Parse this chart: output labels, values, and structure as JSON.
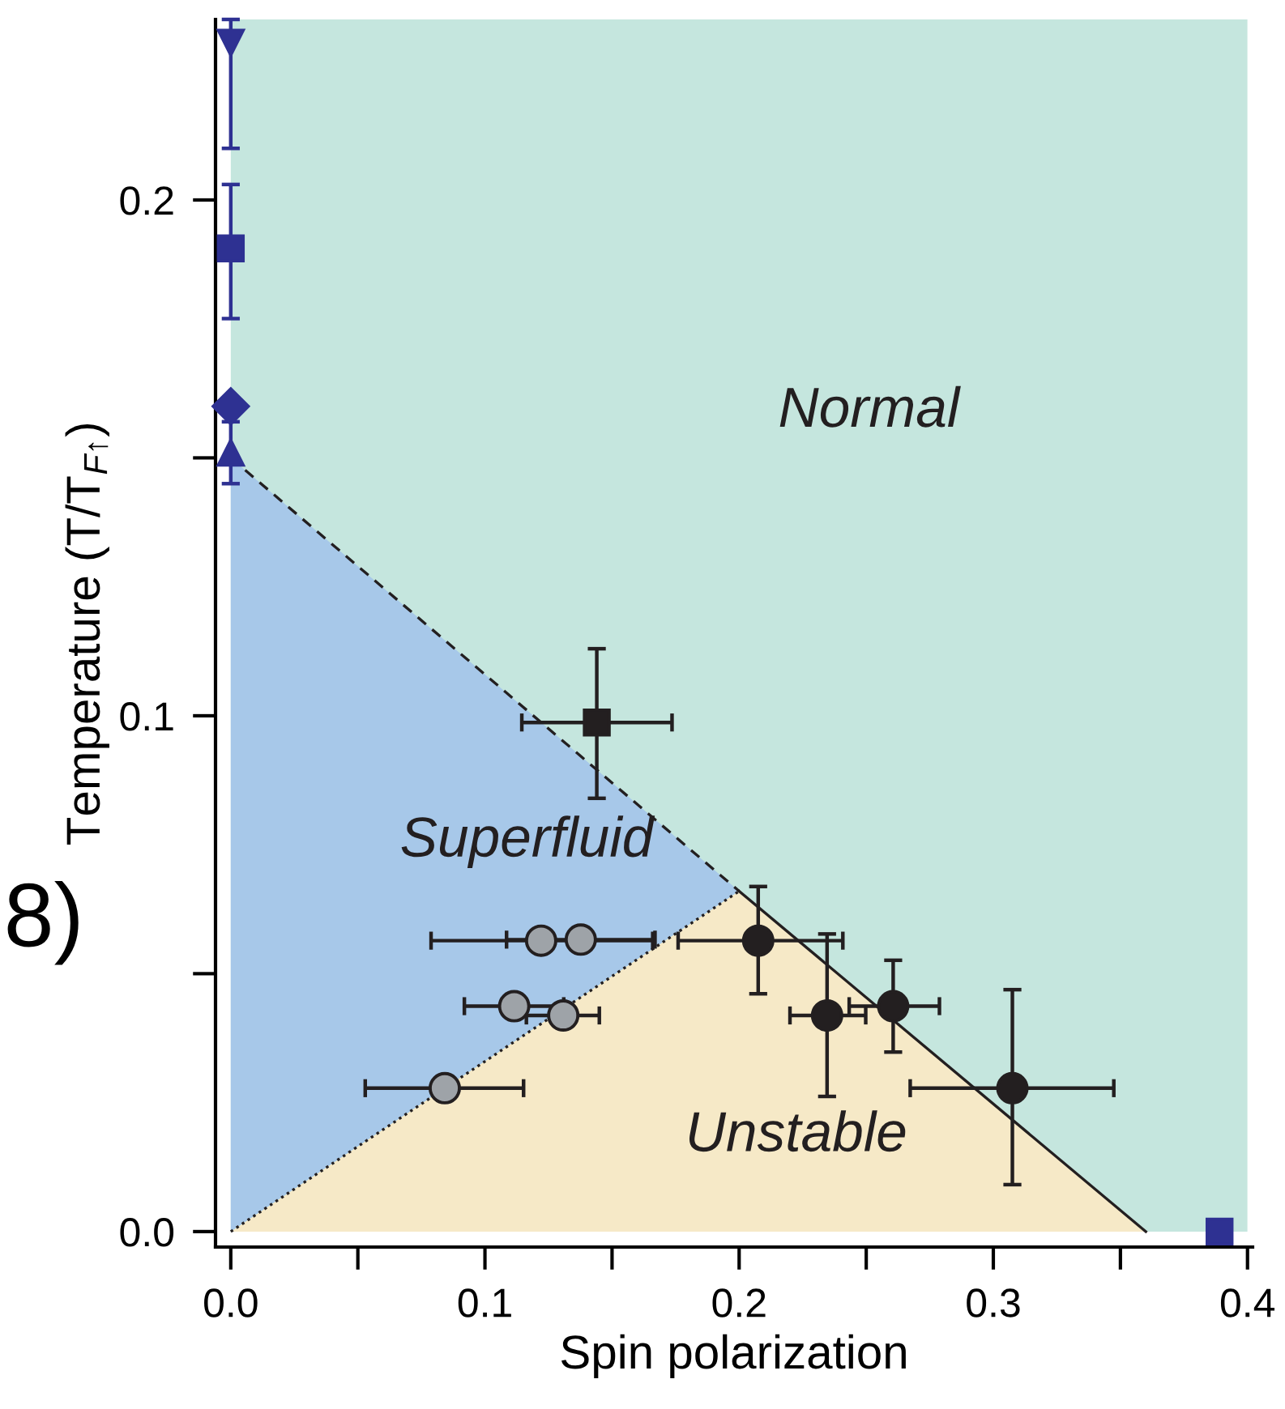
{
  "chart_data": {
    "type": "scatter",
    "xlabel": "Spin polarization",
    "ylabel": "Temperature (T/T$_{F↑}$)",
    "xlim": [
      -0.006,
      0.402
    ],
    "ylim": [
      -0.003,
      0.235
    ],
    "xticks": [
      {
        "value": 0,
        "label": "0.0"
      },
      {
        "value": 0.05,
        "label": null
      },
      0.1,
      {
        "value": 0.15,
        "label": null
      },
      0.2,
      {
        "value": 0.25,
        "label": null
      },
      0.3,
      {
        "value": 0.35,
        "label": null
      },
      0.4
    ],
    "yticks": [
      {
        "value": 0,
        "label": "0.0"
      },
      {
        "value": 0.05,
        "label": null
      },
      0.1,
      {
        "value": 0.15,
        "label": null
      },
      0.2
    ],
    "series": [
      {
        "type": "line",
        "color": "#231f20",
        "line_style": "dashed",
        "x": [
          0,
          0.2
        ],
        "values": [
          0.15,
          0.066
        ]
      },
      {
        "type": "line",
        "color": "#231f20",
        "line_style": "dotted",
        "x": [
          0,
          0.2
        ],
        "values": [
          0,
          0.066
        ]
      },
      {
        "type": "line",
        "color": "#231f20",
        "line_style": "solid",
        "x": [
          0.2,
          0.36
        ],
        "values": [
          0.066,
          0
        ]
      },
      {
        "color": "#2e3192",
        "marker": "triangle_down",
        "x": [
          0
        ],
        "values": [
          0.2305
        ],
        "errors": [
          [
            0.21,
            0.235
          ]
        ]
      },
      {
        "color": "#2e3192",
        "marker": "square",
        "x": [
          0
        ],
        "values": [
          0.1906
        ],
        "errors": [
          [
            0.177,
            0.203
          ]
        ]
      },
      {
        "color": "#2e3192",
        "marker": "diamond",
        "x": [
          0
        ],
        "values": [
          0.16
        ]
      },
      {
        "color": "#2e3192",
        "marker": "triangle",
        "x": [
          0
        ],
        "values": [
          0.151
        ],
        "errors": [
          [
            0.145,
            0.157
          ]
        ]
      },
      {
        "color": "#2e3192",
        "marker": "square",
        "x": [
          0.389
        ],
        "values": [
          0.0
        ]
      },
      {
        "color": "#231f20",
        "marker": "square",
        "x": [
          0.144
        ],
        "values": [
          0.0987
        ],
        "errors": [
          [
            0.084,
            0.113
          ]
        ],
        "xerrors": [
          [
            0.1145,
            0.1736
          ]
        ]
      },
      {
        "color": "#9ea3a8",
        "marker": "circle",
        "x": [
          0.1221,
          0.1377,
          0.1115,
          0.1308,
          0.0842
        ],
        "values": [
          0.0564,
          0.0566,
          0.0437,
          0.0419,
          0.0278
        ],
        "xerrors": [
          [
            0.0788,
            0.166
          ],
          [
            0.1085,
            0.1669
          ],
          [
            0.0919,
            0.131
          ],
          [
            0.1163,
            0.145
          ],
          [
            0.0529,
            0.1152
          ]
        ]
      },
      {
        "color": "#231f20",
        "marker": "circle",
        "x": [
          0.2075,
          0.2346,
          0.2606,
          0.3075
        ],
        "values": [
          0.0564,
          0.0419,
          0.0437,
          0.0278
        ],
        "errors": [
          [
            0.0461,
            0.0669
          ],
          [
            0.0262,
            0.0577
          ],
          [
            0.0348,
            0.0526
          ],
          [
            0.0091,
            0.0469
          ]
        ],
        "xerrors": [
          [
            0.176,
            0.2408
          ],
          [
            0.22,
            0.2498
          ],
          [
            0.2433,
            0.2788
          ],
          [
            0.2673,
            0.3474
          ]
        ]
      }
    ],
    "annotations": [
      "Normal",
      "Superfluid",
      "Unstable",
      "8)"
    ]
  }
}
